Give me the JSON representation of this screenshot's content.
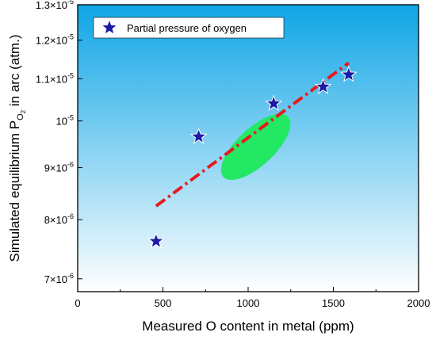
{
  "chart_data": {
    "type": "scatter",
    "xlabel": "Measured O content in metal (ppm)",
    "ylabel": "Simulated equilibrium P",
    "ylabel_sub": "O",
    "ylabel_sub2": "2",
    "ylabel_suffix": " in arc (atm.)",
    "xlim": [
      0,
      2000
    ],
    "ylim": [
      6.8e-06,
      1.3e-05
    ],
    "y_scale": "log",
    "x_ticks": [
      {
        "value": 0,
        "label": "0"
      },
      {
        "value": 500,
        "label": "500"
      },
      {
        "value": 1000,
        "label": "1000"
      },
      {
        "value": 1500,
        "label": "1500"
      },
      {
        "value": 2000,
        "label": "2000"
      }
    ],
    "y_ticks": [
      {
        "value": 7e-06,
        "mant": "7×10",
        "exp": "-6"
      },
      {
        "value": 8e-06,
        "mant": "8×10",
        "exp": "-6"
      },
      {
        "value": 9e-06,
        "mant": "9×10",
        "exp": "-6"
      },
      {
        "value": 1e-05,
        "mant": "10",
        "exp": "-5"
      },
      {
        "value": 1.1e-05,
        "mant": "1.1×10",
        "exp": "-5"
      },
      {
        "value": 1.2e-05,
        "mant": "1.2×10",
        "exp": "-5"
      },
      {
        "value": 1.3e-05,
        "mant": "1.3×10",
        "exp": "-5"
      }
    ],
    "series": [
      {
        "name": "Partial pressure of oxygen",
        "marker": "star",
        "color": "#1a1aa6",
        "points": [
          {
            "x": 460,
            "y": 7.62e-06
          },
          {
            "x": 710,
            "y": 9.65e-06
          },
          {
            "x": 1150,
            "y": 1.04e-05
          },
          {
            "x": 1440,
            "y": 1.08e-05
          },
          {
            "x": 1590,
            "y": 1.11e-05
          }
        ]
      }
    ],
    "trend_line": {
      "color": "#e8191c",
      "style": "dash-dot",
      "x": [
        460,
        1590
      ],
      "y": [
        8.25e-06,
        1.14e-05
      ]
    },
    "ellipse": {
      "color": "#22e864",
      "center": {
        "x": 1045,
        "y": 9.43e-06
      },
      "semi_major_x": 700,
      "semi_minor_x": 120,
      "angle_deg": -43
    },
    "legend_position": "top-left",
    "background_gradient": [
      "#0fa5e6",
      "#ffffff"
    ]
  }
}
